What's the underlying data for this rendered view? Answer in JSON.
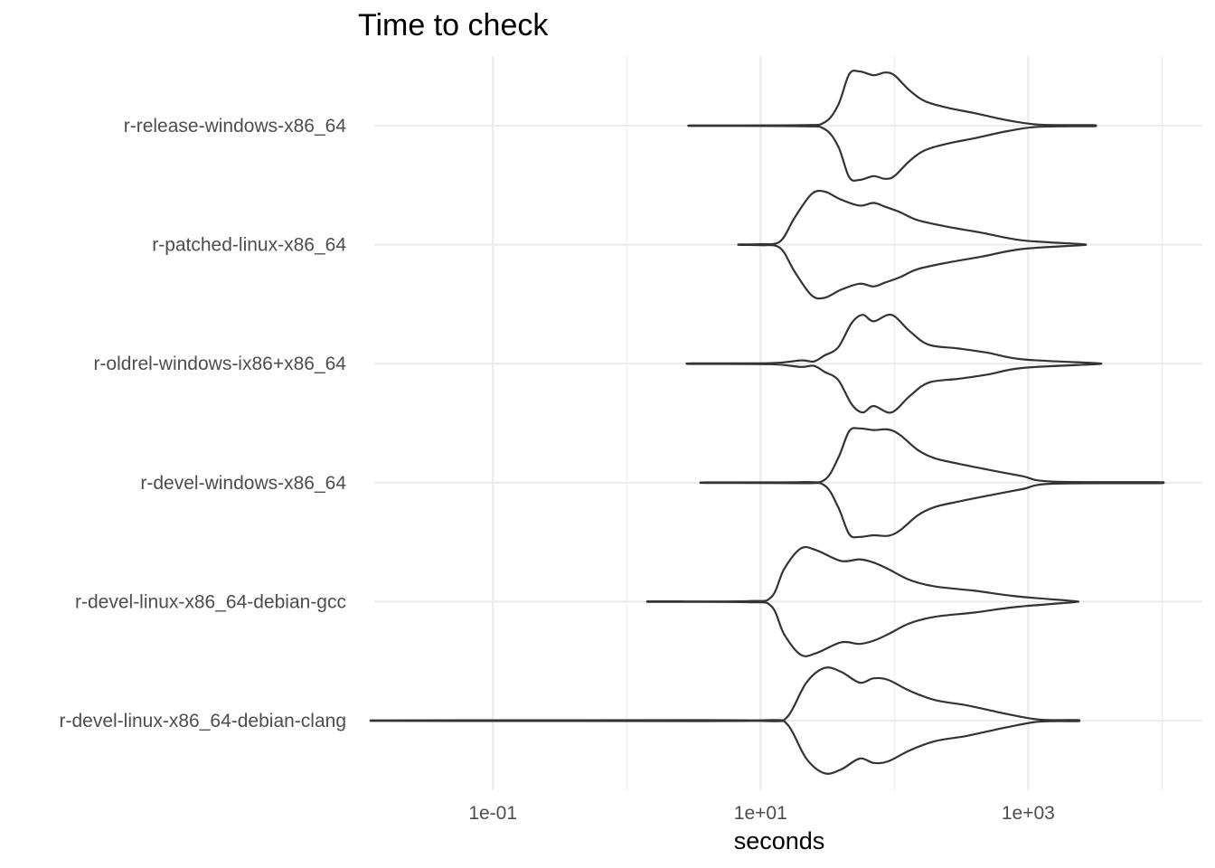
{
  "chart_data": {
    "type": "violin",
    "title": "Time to check",
    "xlabel": "seconds",
    "ylabel": "",
    "x_scale": "log10",
    "xlim": [
      0.013,
      20000
    ],
    "x_ticks": [
      {
        "value": 0.1,
        "label": "1e-01"
      },
      {
        "value": 10,
        "label": "1e+01"
      },
      {
        "value": 1000,
        "label": "1e+03"
      }
    ],
    "x_minor_ticks": [
      0.01,
      1,
      100,
      10000
    ],
    "grid": true,
    "series": [
      {
        "name": "r-release-windows-x86_64",
        "min": 3.3,
        "max": 3000,
        "profile": [
          [
            3.3,
            0.005
          ],
          [
            20,
            0.01
          ],
          [
            30,
            0.06
          ],
          [
            38,
            0.38
          ],
          [
            46,
            0.95
          ],
          [
            55,
            1.0
          ],
          [
            70,
            0.93
          ],
          [
            85,
            0.98
          ],
          [
            100,
            0.93
          ],
          [
            130,
            0.65
          ],
          [
            170,
            0.45
          ],
          [
            250,
            0.33
          ],
          [
            400,
            0.23
          ],
          [
            700,
            0.1
          ],
          [
            1200,
            0.02
          ],
          [
            3000,
            0.01
          ]
        ]
      },
      {
        "name": "r-patched-linux-x86_64",
        "min": 7.0,
        "max": 2500,
        "profile": [
          [
            7.0,
            0.005
          ],
          [
            10,
            0.01
          ],
          [
            14,
            0.06
          ],
          [
            18,
            0.5
          ],
          [
            24,
            0.93
          ],
          [
            30,
            0.98
          ],
          [
            40,
            0.83
          ],
          [
            55,
            0.72
          ],
          [
            70,
            0.77
          ],
          [
            85,
            0.7
          ],
          [
            110,
            0.6
          ],
          [
            150,
            0.45
          ],
          [
            250,
            0.33
          ],
          [
            450,
            0.22
          ],
          [
            900,
            0.08
          ],
          [
            2500,
            0.01
          ]
        ]
      },
      {
        "name": "r-oldrel-windows-ix86+x86_64",
        "min": 3.1,
        "max": 3200,
        "profile": [
          [
            3.1,
            0.005
          ],
          [
            12,
            0.01
          ],
          [
            20,
            0.06
          ],
          [
            25,
            0.04
          ],
          [
            30,
            0.15
          ],
          [
            38,
            0.3
          ],
          [
            48,
            0.75
          ],
          [
            58,
            0.9
          ],
          [
            70,
            0.78
          ],
          [
            95,
            0.9
          ],
          [
            130,
            0.6
          ],
          [
            180,
            0.35
          ],
          [
            300,
            0.28
          ],
          [
            500,
            0.2
          ],
          [
            900,
            0.08
          ],
          [
            3200,
            0.01
          ]
        ]
      },
      {
        "name": "r-devel-windows-x86_64",
        "min": 4.0,
        "max": 9000,
        "profile": [
          [
            4.0,
            0.005
          ],
          [
            20,
            0.01
          ],
          [
            30,
            0.05
          ],
          [
            38,
            0.45
          ],
          [
            46,
            0.95
          ],
          [
            55,
            1.0
          ],
          [
            70,
            0.97
          ],
          [
            90,
            0.98
          ],
          [
            110,
            0.88
          ],
          [
            150,
            0.6
          ],
          [
            200,
            0.45
          ],
          [
            300,
            0.35
          ],
          [
            500,
            0.24
          ],
          [
            900,
            0.12
          ],
          [
            1500,
            0.02
          ],
          [
            9000,
            0.01
          ]
        ]
      },
      {
        "name": "r-devel-linux-x86_64-debian-gcc",
        "min": 1.6,
        "max": 2200,
        "profile": [
          [
            1.6,
            0.005
          ],
          [
            8,
            0.01
          ],
          [
            12,
            0.08
          ],
          [
            15,
            0.6
          ],
          [
            20,
            0.98
          ],
          [
            26,
            0.95
          ],
          [
            40,
            0.75
          ],
          [
            55,
            0.78
          ],
          [
            70,
            0.72
          ],
          [
            90,
            0.6
          ],
          [
            130,
            0.4
          ],
          [
            200,
            0.28
          ],
          [
            400,
            0.2
          ],
          [
            800,
            0.1
          ],
          [
            2200,
            0.01
          ]
        ]
      },
      {
        "name": "r-devel-linux-x86_64-debian-clang",
        "min": 0.018,
        "max": 2300,
        "profile": [
          [
            0.018,
            0.005
          ],
          [
            3.5,
            0.008
          ],
          [
            12,
            0.01
          ],
          [
            16,
            0.08
          ],
          [
            22,
            0.7
          ],
          [
            30,
            0.97
          ],
          [
            40,
            0.9
          ],
          [
            55,
            0.7
          ],
          [
            70,
            0.78
          ],
          [
            90,
            0.75
          ],
          [
            130,
            0.55
          ],
          [
            200,
            0.38
          ],
          [
            350,
            0.28
          ],
          [
            700,
            0.12
          ],
          [
            1200,
            0.02
          ],
          [
            2300,
            0.01
          ]
        ]
      }
    ]
  }
}
